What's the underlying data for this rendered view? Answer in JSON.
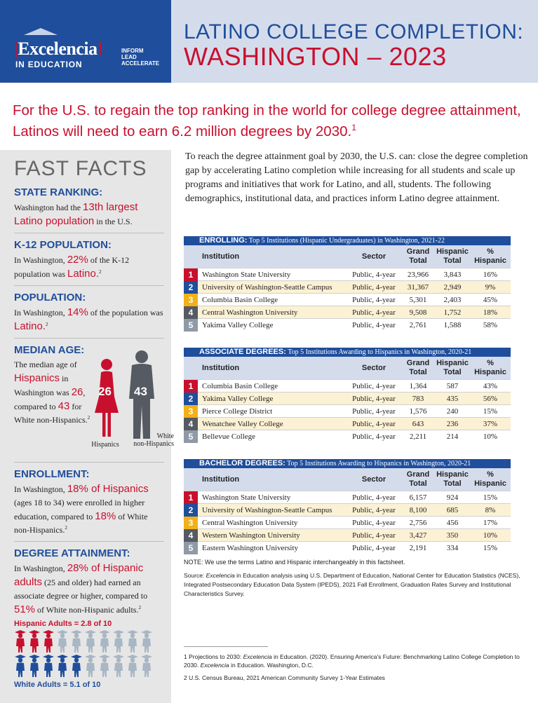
{
  "header": {
    "logo_word": "Excelencia",
    "logo_sub": "IN EDUCATION",
    "logo_tag": [
      "INFORM",
      "LEAD",
      "ACCELERATE"
    ],
    "title_line1": "LATINO COLLEGE COMPLETION:",
    "title_line2": "WASHINGTON – 2023"
  },
  "headline": "For the U.S. to regain the top ranking in the world for college degree attainment, Latinos will need to earn 6.2 million degrees by 2030.",
  "headline_sup": "1",
  "colors": {
    "blue": "#1f4e9c",
    "red": "#c8102e",
    "gold": "#f2b118",
    "gray": "#555a63",
    "light_gray": "#8f9aa6",
    "light_blue": "#d4dcec",
    "row_alt": "#fbf1d4"
  },
  "fast_facts": {
    "title": "FAST FACTS",
    "state_ranking": {
      "heading": "STATE RANKING:",
      "t1": "Washington had the ",
      "hl": "13th largest Latino population",
      "t2": " in the U.S."
    },
    "k12": {
      "heading": "K-12 POPULATION:",
      "t1": "In Washington, ",
      "hl1": "22%",
      "t2": " of the K-12 population was ",
      "hl2": "Latino.",
      "sup": "2"
    },
    "population": {
      "heading": "POPULATION:",
      "t1": "In Washington, ",
      "hl1": "14%",
      "t2": " of the population was ",
      "hl2": "Latino.",
      "sup": "2"
    },
    "median_age": {
      "heading": "MEDIAN AGE:",
      "t1": "The median age of ",
      "hl1": "Hispanics",
      "t2": " in Washington was ",
      "hl2": "26",
      "t3": ", compared to ",
      "hl3": "43",
      "t4": " for White non-Hispanics.",
      "sup": "2",
      "hispanic_age": "26",
      "white_age": "43",
      "hispanic_label": "Hispanics",
      "white_label_1": "White",
      "white_label_2": "non-Hispanics"
    },
    "enrollment": {
      "heading": "ENROLLMENT:",
      "t1": "In Washington, ",
      "hl1": "18% of Hispanics",
      "t2": " (ages 18 to 34) were enrolled in higher education, compared to ",
      "hl2": "18%",
      "t3": " of White non-Hispanics.",
      "sup": "2"
    },
    "degree": {
      "heading": "DEGREE ATTAINMENT:",
      "t1": "In Washington, ",
      "hl1": "28% of Hispanic adults",
      "t2": " (25 and older) had earned an associate degree or higher, compared to ",
      "hl2": "51%",
      "t3": " of White non-Hispanic adults.",
      "sup": "2",
      "hispanic_label": "Hispanic Adults = 2.8 of 10",
      "white_label": "White Adults = 5.1 of 10",
      "hispanic_value": 2.8,
      "white_value": 5.1
    }
  },
  "intro": "To reach the degree attainment goal by 2030, the U.S. can: close the degree completion gap by accelerating Latino completion while increasing for all students and scale up programs and initiatives that work for Latino, and all, students. The following demographics, institutional data, and practices inform Latino degree attainment.",
  "columns": {
    "institution": "Institution",
    "sector": "Sector",
    "grand_1": "Grand",
    "grand_2": "Total",
    "hisp_1": "Hispanic",
    "hisp_2": "Total",
    "pct_1": "%",
    "pct_2": "Hispanic"
  },
  "tables": [
    {
      "bold": "ENROLLING:",
      "rest": " Top 5 Institutions (Hispanic Undergraduates) in Washington, 2021-22",
      "rows": [
        {
          "rank": "1",
          "institution": "Washington State University",
          "sector": "Public, 4-year",
          "grand": "23,966",
          "hispanic": "3,843",
          "pct": "16%"
        },
        {
          "rank": "2",
          "institution": "University of Washington-Seattle Campus",
          "sector": "Public, 4-year",
          "grand": "31,367",
          "hispanic": "2,949",
          "pct": "9%"
        },
        {
          "rank": "3",
          "institution": "Columbia Basin College",
          "sector": "Public, 4-year",
          "grand": "5,301",
          "hispanic": "2,403",
          "pct": "45%"
        },
        {
          "rank": "4",
          "institution": "Central Washington University",
          "sector": "Public, 4-year",
          "grand": "9,508",
          "hispanic": "1,752",
          "pct": "18%"
        },
        {
          "rank": "5",
          "institution": "Yakima Valley College",
          "sector": "Public, 4-year",
          "grand": "2,761",
          "hispanic": "1,588",
          "pct": "58%"
        }
      ]
    },
    {
      "bold": "ASSOCIATE DEGREES:",
      "rest": " Top 5 Institutions Awarding to Hispanics in Washington, 2020-21",
      "rows": [
        {
          "rank": "1",
          "institution": "Columbia Basin College",
          "sector": "Public, 4-year",
          "grand": "1,364",
          "hispanic": "587",
          "pct": "43%"
        },
        {
          "rank": "2",
          "institution": "Yakima Valley College",
          "sector": "Public, 4-year",
          "grand": "783",
          "hispanic": "435",
          "pct": "56%"
        },
        {
          "rank": "3",
          "institution": "Pierce College District",
          "sector": "Public, 4-year",
          "grand": "1,576",
          "hispanic": "240",
          "pct": "15%"
        },
        {
          "rank": "4",
          "institution": "Wenatchee Valley College",
          "sector": "Public, 4-year",
          "grand": "643",
          "hispanic": "236",
          "pct": "37%"
        },
        {
          "rank": "5",
          "institution": "Bellevue College",
          "sector": "Public, 4-year",
          "grand": "2,211",
          "hispanic": "214",
          "pct": "10%"
        }
      ]
    },
    {
      "bold": "BACHELOR DEGREES:",
      "rest": " Top 5 Institutions Awarding to Hispanics in Washington, 2020-21",
      "rows": [
        {
          "rank": "1",
          "institution": "Washington State University",
          "sector": "Public, 4-year",
          "grand": "6,157",
          "hispanic": "924",
          "pct": "15%"
        },
        {
          "rank": "2",
          "institution": "University of Washington-Seattle Campus",
          "sector": "Public, 4-year",
          "grand": "8,100",
          "hispanic": "685",
          "pct": "8%"
        },
        {
          "rank": "3",
          "institution": "Central Washington University",
          "sector": "Public, 4-year",
          "grand": "2,756",
          "hispanic": "456",
          "pct": "17%"
        },
        {
          "rank": "4",
          "institution": "Western Washington University",
          "sector": "Public, 4-year",
          "grand": "3,427",
          "hispanic": "350",
          "pct": "10%"
        },
        {
          "rank": "5",
          "institution": "Eastern Washington University",
          "sector": "Public, 4-year",
          "grand": "2,191",
          "hispanic": "334",
          "pct": "15%"
        }
      ]
    }
  ],
  "note": "NOTE: We use the terms Latino and Hispanic interchangeably in this factsheet.",
  "source_pre": "Source: ",
  "source_em": "Excelencia",
  "source_post": " in Education analysis using U.S. Department of Education, National Center for Education Statistics (NCES), Integrated Postsecondary Education Data System (IPEDS), 2021 Fall Enrollment, Graduation Rates Survey and Institutional Characteristics Survey.",
  "footnotes": {
    "f1_a": "1 Projections to 2030: ",
    "f1_em1": "Excelencia",
    "f1_b": " in Education. (2020). Ensuring America's Future: Benchmarking Latino College Completion to 2030. ",
    "f1_em2": "Excelencia",
    "f1_c": " in Education. Washington, D.C.",
    "f2": "2 U.S. Census Bureau, 2021 American Community Survey 1-Year Estimates"
  }
}
